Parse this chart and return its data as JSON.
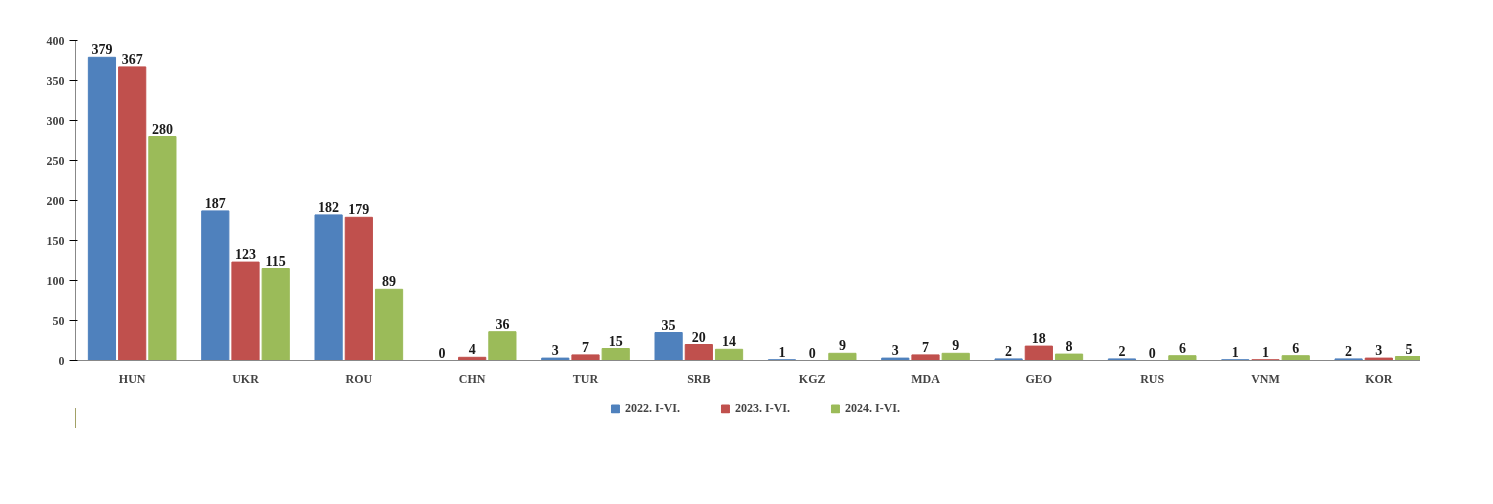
{
  "chart_data": {
    "type": "bar",
    "categories": [
      "HUN",
      "UKR",
      "ROU",
      "CHN",
      "TUR",
      "SRB",
      "KGZ",
      "MDA",
      "GEO",
      "RUS",
      "VNM",
      "KOR"
    ],
    "series": [
      {
        "name": "2022. I-VI.",
        "color": "#4f81bd",
        "values": [
          379,
          187,
          182,
          0,
          3,
          35,
          1,
          3,
          2,
          2,
          1,
          2
        ]
      },
      {
        "name": "2023. I-VI.",
        "color": "#c0504d",
        "values": [
          367,
          123,
          179,
          4,
          7,
          20,
          0,
          7,
          18,
          0,
          1,
          3
        ]
      },
      {
        "name": "2024. I-VI.",
        "color": "#9bbb59",
        "values": [
          280,
          115,
          89,
          36,
          15,
          14,
          9,
          9,
          8,
          6,
          6,
          5
        ]
      }
    ],
    "ylim": [
      0,
      400
    ],
    "yticks": [
      0,
      50,
      100,
      150,
      200,
      250,
      300,
      350,
      400
    ],
    "data_labels": true,
    "legend": "bottom",
    "grid": false
  }
}
